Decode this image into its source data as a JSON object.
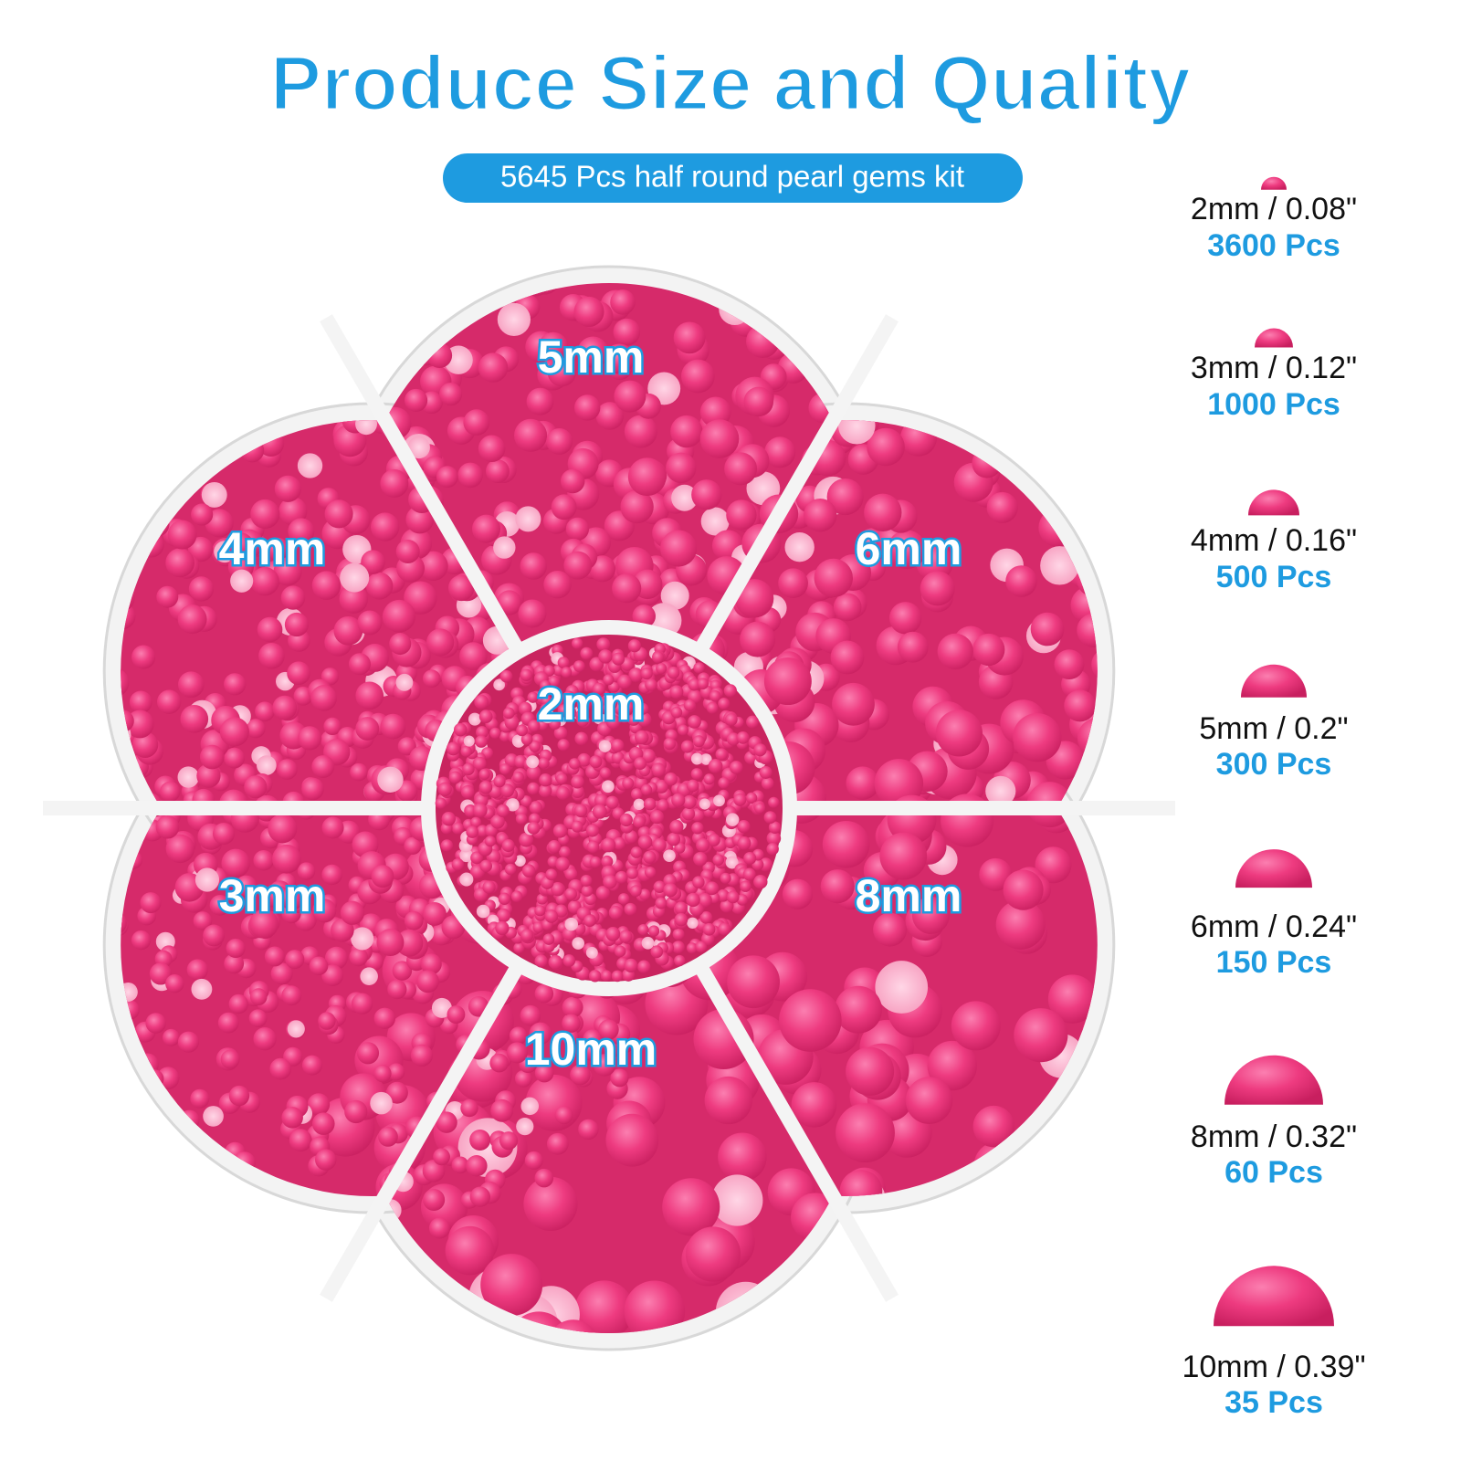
{
  "header": {
    "title": "Produce Size and Quality",
    "subtitle": "5645 Pcs half round pearl gems kit"
  },
  "compartments": [
    "5mm",
    "6mm",
    "8mm",
    "10mm",
    "3mm",
    "4mm",
    "2mm"
  ],
  "sizes": [
    {
      "size": "2mm / 0.08\"",
      "count": "3600 Pcs"
    },
    {
      "size": "3mm / 0.12\"",
      "count": "1000 Pcs"
    },
    {
      "size": "4mm / 0.16\"",
      "count": "500 Pcs"
    },
    {
      "size": "5mm / 0.2\"",
      "count": "300 Pcs"
    },
    {
      "size": "6mm / 0.24\"",
      "count": "150 Pcs"
    },
    {
      "size": "8mm / 0.32\"",
      "count": "60 Pcs"
    },
    {
      "size": "10mm / 0.39\"",
      "count": "35 Pcs"
    }
  ]
}
